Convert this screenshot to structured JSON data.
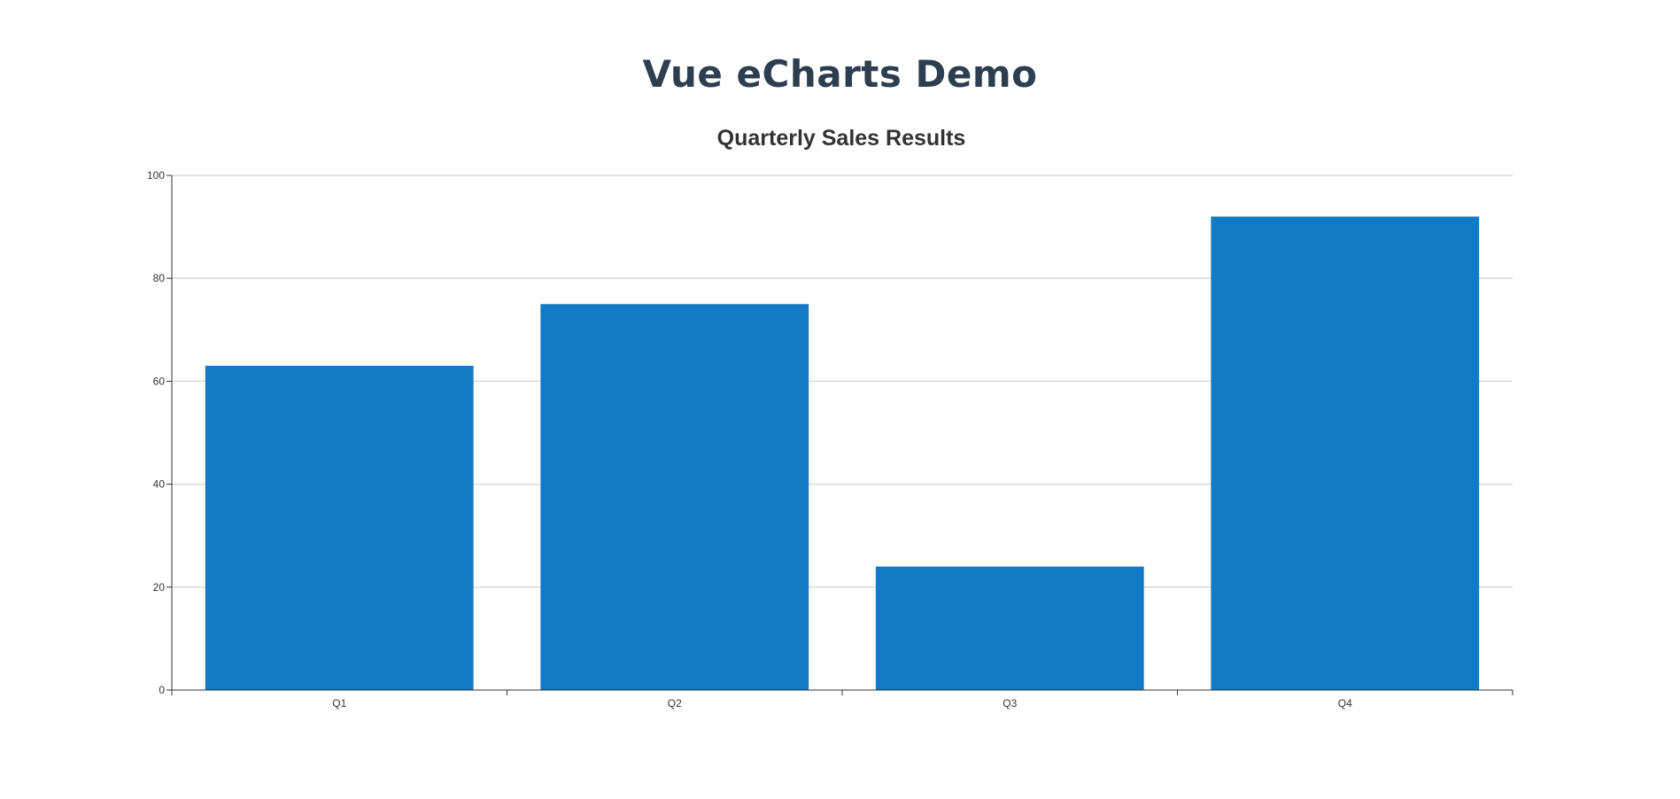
{
  "page": {
    "title": "Vue eCharts Demo"
  },
  "chart_data": {
    "type": "bar",
    "title": "Quarterly Sales Results",
    "categories": [
      "Q1",
      "Q2",
      "Q3",
      "Q4"
    ],
    "values": [
      63,
      75,
      24,
      92
    ],
    "xlabel": "",
    "ylabel": "",
    "ylim": [
      0,
      100
    ],
    "yticks": [
      0,
      20,
      40,
      60,
      80,
      100
    ],
    "grid": true,
    "bar_color": "#137ac5",
    "axis_color": "#333333",
    "grid_color": "#d9d9d9",
    "title_color": "#333333"
  }
}
